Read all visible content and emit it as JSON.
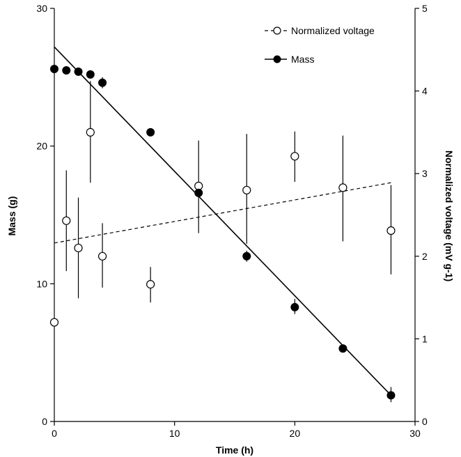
{
  "chart_data": {
    "type": "scatter",
    "title": "",
    "xlabel": "Time (h)",
    "ylabel_left": "Mass (g)",
    "ylabel_right": "Normalized voltage (mV g-1)",
    "xlim": [
      0,
      30
    ],
    "ylim_left": [
      0,
      30
    ],
    "ylim_right": [
      0,
      5
    ],
    "x_ticks": [
      "0",
      "10",
      "20",
      "30"
    ],
    "y_left_ticks": [
      "0",
      "10",
      "20",
      "30"
    ],
    "y_right_ticks": [
      "0",
      "1",
      "2",
      "3",
      "4",
      "5"
    ],
    "grid": false,
    "legend_position": "top-right",
    "series": [
      {
        "name": "Normalized voltage",
        "axis": "right",
        "marker": "open-circle",
        "fit_line": "dashed",
        "points": [
          {
            "x": 0,
            "y": 1.2
          },
          {
            "x": 1,
            "y": 2.43,
            "err_low": 1.82,
            "err_high": 3.04
          },
          {
            "x": 2,
            "y": 2.1,
            "err_low": 1.49,
            "err_high": 2.71
          },
          {
            "x": 3,
            "y": 3.5,
            "err_low": 2.89,
            "err_high": 4.12
          },
          {
            "x": 4,
            "y": 2.0,
            "err_low": 1.62,
            "err_high": 2.4
          },
          {
            "x": 8,
            "y": 1.66,
            "err_low": 1.44,
            "err_high": 1.87
          },
          {
            "x": 12,
            "y": 2.85,
            "err_low": 2.28,
            "err_high": 3.4
          },
          {
            "x": 16,
            "y": 2.8,
            "err_low": 2.15,
            "err_high": 3.48
          },
          {
            "x": 20,
            "y": 3.21,
            "err_low": 2.9,
            "err_high": 3.51
          },
          {
            "x": 24,
            "y": 2.83,
            "err_low": 2.18,
            "err_high": 3.46
          },
          {
            "x": 28,
            "y": 2.31,
            "err_low": 1.78,
            "err_high": 2.86
          }
        ],
        "fit": {
          "x": [
            0,
            28
          ],
          "y": [
            2.16,
            2.89
          ]
        }
      },
      {
        "name": "Mass",
        "axis": "left",
        "marker": "filled-circle",
        "fit_line": "solid",
        "points": [
          {
            "x": 0,
            "y": 25.6
          },
          {
            "x": 1,
            "y": 25.5
          },
          {
            "x": 2,
            "y": 25.4
          },
          {
            "x": 3,
            "y": 25.2
          },
          {
            "x": 4,
            "y": 24.6,
            "err_low": 24.2,
            "err_high": 25.0
          },
          {
            "x": 8,
            "y": 21.0
          },
          {
            "x": 12,
            "y": 16.6
          },
          {
            "x": 16,
            "y": 12.0,
            "err_low": 11.6,
            "err_high": 12.4
          },
          {
            "x": 20,
            "y": 8.3,
            "err_low": 7.8,
            "err_high": 8.9
          },
          {
            "x": 24,
            "y": 5.3
          },
          {
            "x": 28,
            "y": 1.9,
            "err_low": 1.4,
            "err_high": 2.5
          }
        ],
        "fit": {
          "x": [
            0,
            28
          ],
          "y": [
            27.2,
            1.9
          ]
        }
      }
    ]
  }
}
